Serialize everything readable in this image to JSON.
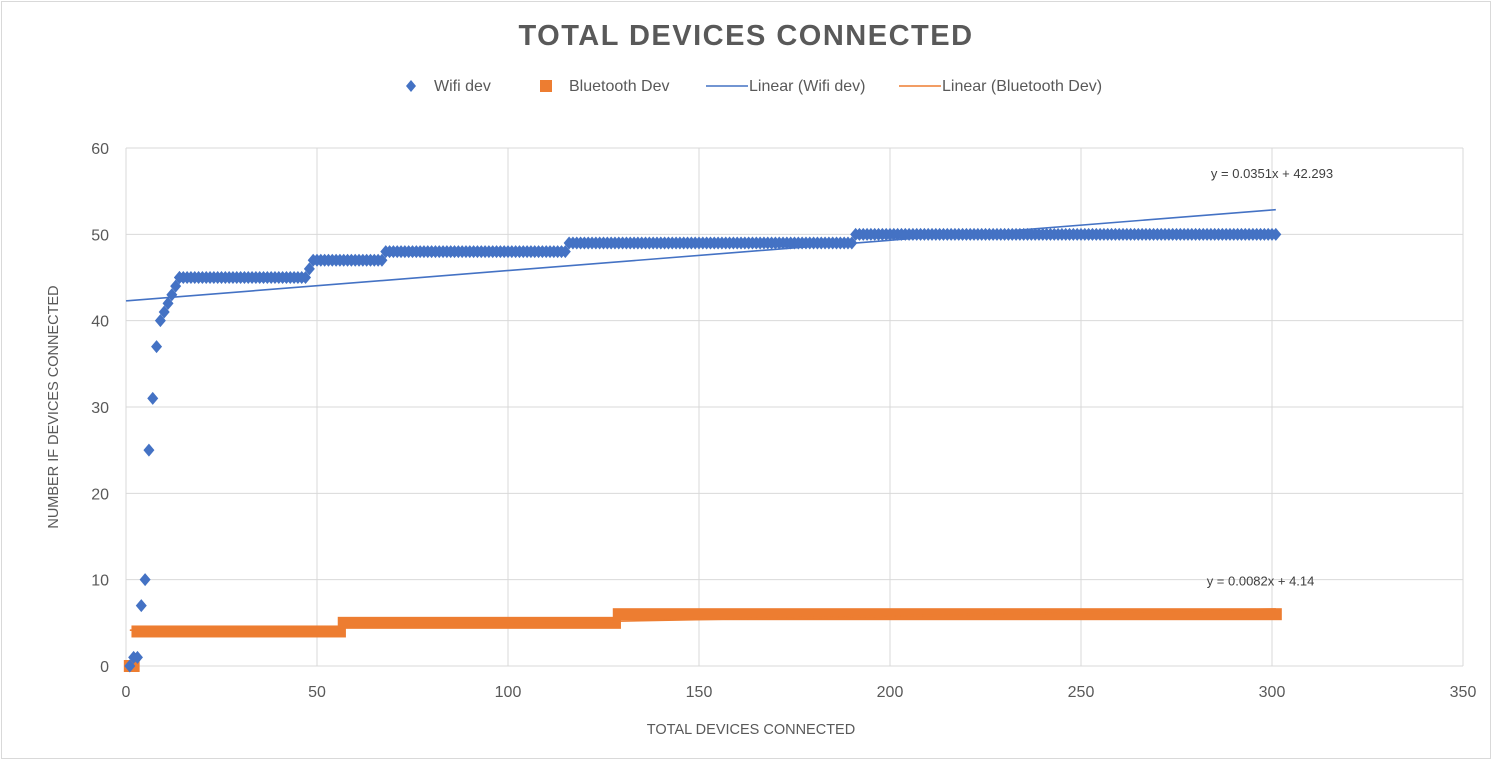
{
  "colors": {
    "wifi": "#4472c4",
    "bluetooth": "#ed7d31",
    "grid": "#d9d9d9",
    "text": "#595959"
  },
  "chart_data": {
    "type": "scatter",
    "title": "TOTAL DEVICES CONNECTED",
    "xlabel": "TOTAL DEVICES CONNECTED",
    "ylabel": "NUMBER IF DEVICES CONNECTED",
    "xlim": [
      0,
      350
    ],
    "ylim": [
      0,
      60
    ],
    "xticks": [
      0,
      50,
      100,
      150,
      200,
      250,
      300,
      350
    ],
    "yticks": [
      0,
      10,
      20,
      30,
      40,
      50,
      60
    ],
    "grid": true,
    "legend_position": "top",
    "legend": [
      "Wifi dev",
      "Bluetooth Dev",
      "Linear (Wifi dev)",
      "Linear (Bluetooth Dev)"
    ],
    "series": [
      {
        "name": "Wifi dev",
        "marker": "diamond",
        "points": [
          [
            1,
            0
          ],
          [
            2,
            1
          ],
          [
            3,
            1
          ],
          [
            4,
            7
          ],
          [
            5,
            10
          ],
          [
            6,
            25
          ],
          [
            7,
            31
          ],
          [
            8,
            37
          ],
          [
            9,
            40
          ],
          [
            10,
            41
          ],
          [
            11,
            42
          ],
          [
            12,
            43
          ],
          [
            13,
            44
          ],
          [
            14,
            45
          ]
        ],
        "steps": [
          {
            "x_from": 14,
            "x_to": 47,
            "y": 45
          },
          {
            "x_from": 48,
            "x_to": 48,
            "y": 46
          },
          {
            "x_from": 49,
            "x_to": 67,
            "y": 47
          },
          {
            "x_from": 68,
            "x_to": 115,
            "y": 48
          },
          {
            "x_from": 116,
            "x_to": 190,
            "y": 49
          },
          {
            "x_from": 191,
            "x_to": 301,
            "y": 50
          }
        ]
      },
      {
        "name": "Bluetooth Dev",
        "marker": "square",
        "points": [
          [
            1,
            0
          ],
          [
            2,
            0
          ]
        ],
        "steps": [
          {
            "x_from": 3,
            "x_to": 56,
            "y": 4
          },
          {
            "x_from": 57,
            "x_to": 128,
            "y": 5
          },
          {
            "x_from": 129,
            "x_to": 301,
            "y": 6
          }
        ]
      }
    ],
    "trendlines": [
      {
        "name": "Linear (Wifi dev)",
        "slope": 0.0351,
        "intercept": 42.293,
        "x_range": [
          0,
          301
        ],
        "equation": "y = 0.0351x + 42.293",
        "equation_anchor": [
          300,
          56.5
        ]
      },
      {
        "name": "Linear (Bluetooth Dev)",
        "slope": 0.0082,
        "intercept": 4.14,
        "x_range": [
          1,
          301
        ],
        "equation": "y = 0.0082x + 4.14",
        "equation_anchor": [
          297,
          9.3
        ]
      }
    ]
  }
}
